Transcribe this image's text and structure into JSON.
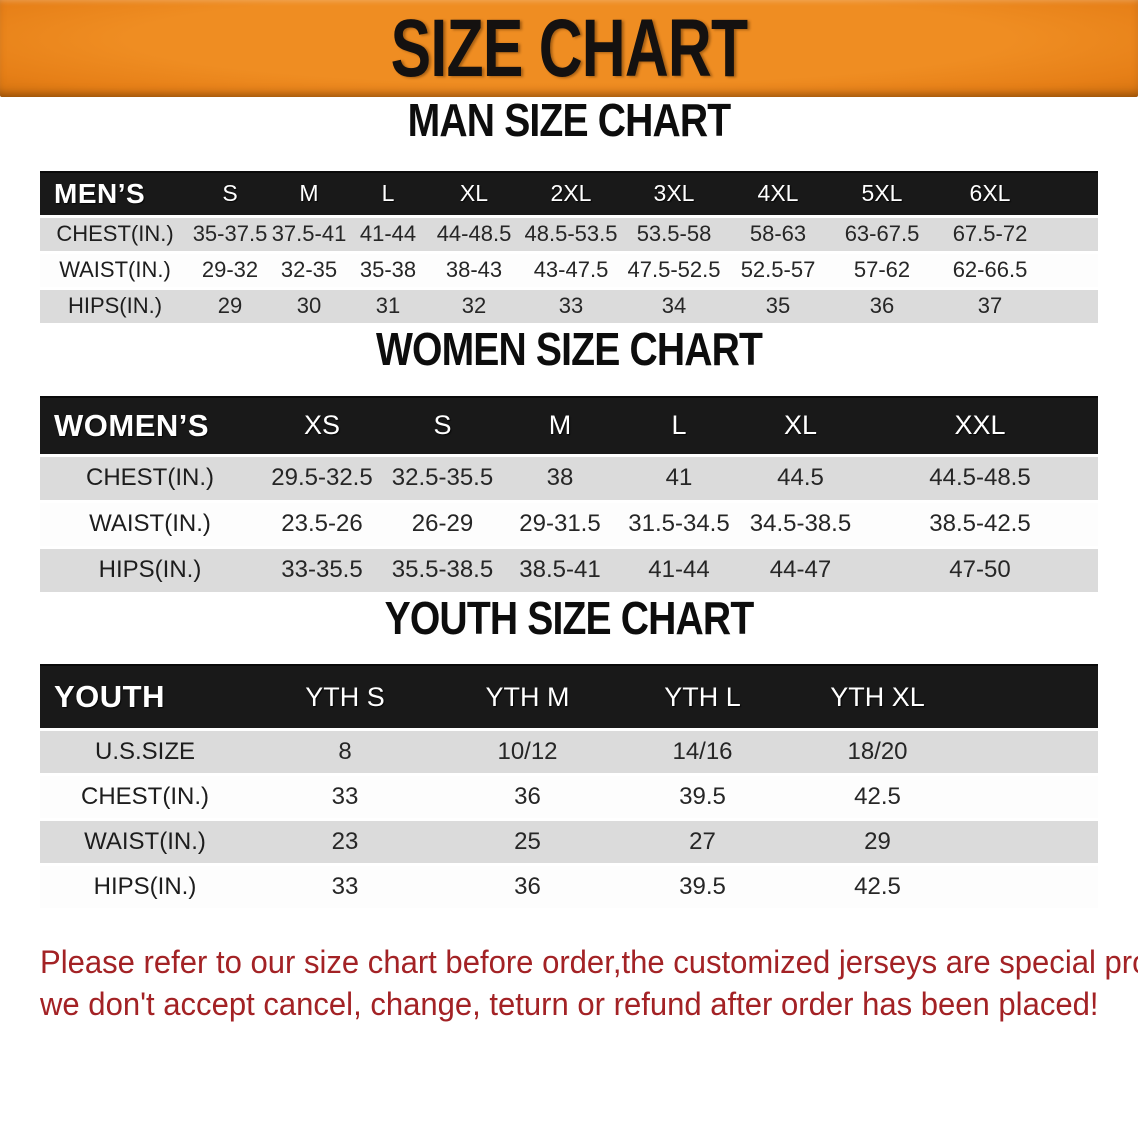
{
  "banner": {
    "title": "SIZE CHART"
  },
  "sections": [
    {
      "title": "MAN SIZE CHART",
      "header_label": "MEN’S",
      "columns": [
        "S",
        "M",
        "L",
        "XL",
        "2XL",
        "3XL",
        "4XL",
        "5XL",
        "6XL"
      ],
      "rows": [
        {
          "label": "CHEST(IN.)",
          "values": [
            "35-37.5",
            "37.5-41",
            "41-44",
            "44-48.5",
            "48.5-53.5",
            "53.5-58",
            "58-63",
            "63-67.5",
            "67.5-72"
          ]
        },
        {
          "label": "WAIST(IN.)",
          "values": [
            "29-32",
            "32-35",
            "35-38",
            "38-43",
            "43-47.5",
            "47.5-52.5",
            "52.5-57",
            "57-62",
            "62-66.5"
          ]
        },
        {
          "label": "HIPS(IN.)",
          "values": [
            "29",
            "30",
            "31",
            "32",
            "33",
            "34",
            "35",
            "36",
            "37"
          ]
        }
      ]
    },
    {
      "title": "WOMEN SIZE CHART",
      "header_label": "WOMEN’S",
      "columns": [
        "XS",
        "S",
        "M",
        "L",
        "XL",
        "XXL"
      ],
      "rows": [
        {
          "label": "CHEST(IN.)",
          "values": [
            "29.5-32.5",
            "32.5-35.5",
            "38",
            "41",
            "44.5",
            "44.5-48.5"
          ]
        },
        {
          "label": "WAIST(IN.)",
          "values": [
            "23.5-26",
            "26-29",
            "29-31.5",
            "31.5-34.5",
            "34.5-38.5",
            "38.5-42.5"
          ]
        },
        {
          "label": "HIPS(IN.)",
          "values": [
            "33-35.5",
            "35.5-38.5",
            "38.5-41",
            "41-44",
            "44-47",
            "47-50"
          ]
        }
      ]
    },
    {
      "title": "YOUTH SIZE CHART",
      "header_label": "YOUTH",
      "columns": [
        "YTH S",
        "YTH M",
        "YTH L",
        "YTH XL"
      ],
      "rows": [
        {
          "label": "U.S.SIZE",
          "values": [
            "8",
            "10/12",
            "14/16",
            "18/20"
          ]
        },
        {
          "label": "CHEST(IN.)",
          "values": [
            "33",
            "36",
            "39.5",
            "42.5"
          ]
        },
        {
          "label": "WAIST(IN.)",
          "values": [
            "23",
            "25",
            "27",
            "29"
          ]
        },
        {
          "label": "HIPS(IN.)",
          "values": [
            "33",
            "36",
            "39.5",
            "42.5"
          ]
        }
      ]
    }
  ],
  "footer": {
    "line1": "Please refer to our size chart before order,the customized jerseys are special products,",
    "line2": "we don't accept cancel, change, teturn or refund after order has been placed!"
  },
  "colors": {
    "banner_orange": "#e67f17",
    "header_black": "#191919",
    "row_gray": "#dbdbdb",
    "note_red": "#a32225"
  }
}
